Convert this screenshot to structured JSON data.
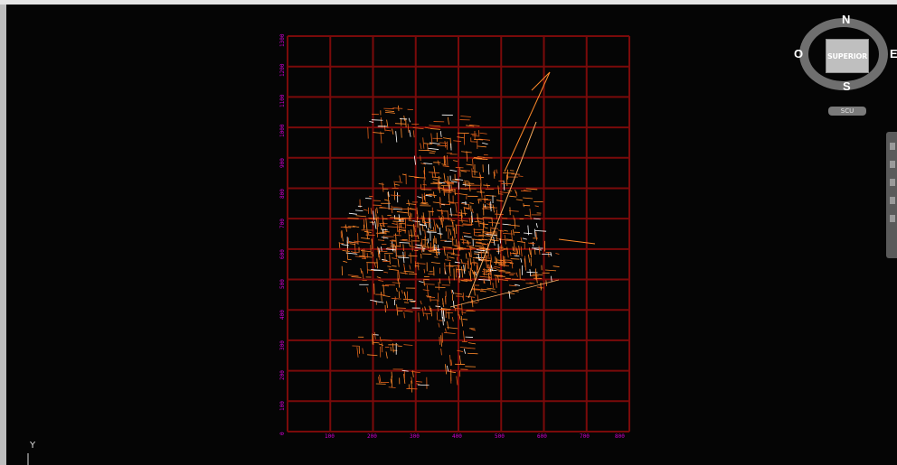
{
  "viewport": {
    "background": "#000000",
    "grid_color": "#7a0a0a",
    "label_color": "#d400d4",
    "map_color": "#ff8a2a"
  },
  "grid": {
    "x_labels": [
      "100",
      "200",
      "300",
      "400",
      "500",
      "600",
      "700",
      "800"
    ],
    "y_labels": [
      "1300",
      "1200",
      "1100",
      "1000",
      "900",
      "800",
      "700",
      "600",
      "500",
      "400",
      "300",
      "200",
      "100",
      "0"
    ]
  },
  "viewcube": {
    "north": "N",
    "south": "S",
    "east": "E",
    "west": "O",
    "face_label": "SUPERIOR",
    "ucs_menu": "SCU"
  },
  "ucs_icon": {
    "axis_label": "Y"
  },
  "navbar": {
    "icons": [
      "steering-wheel-icon",
      "pan-icon",
      "zoom-icon",
      "orbit-icon",
      "showmotion-icon"
    ]
  }
}
